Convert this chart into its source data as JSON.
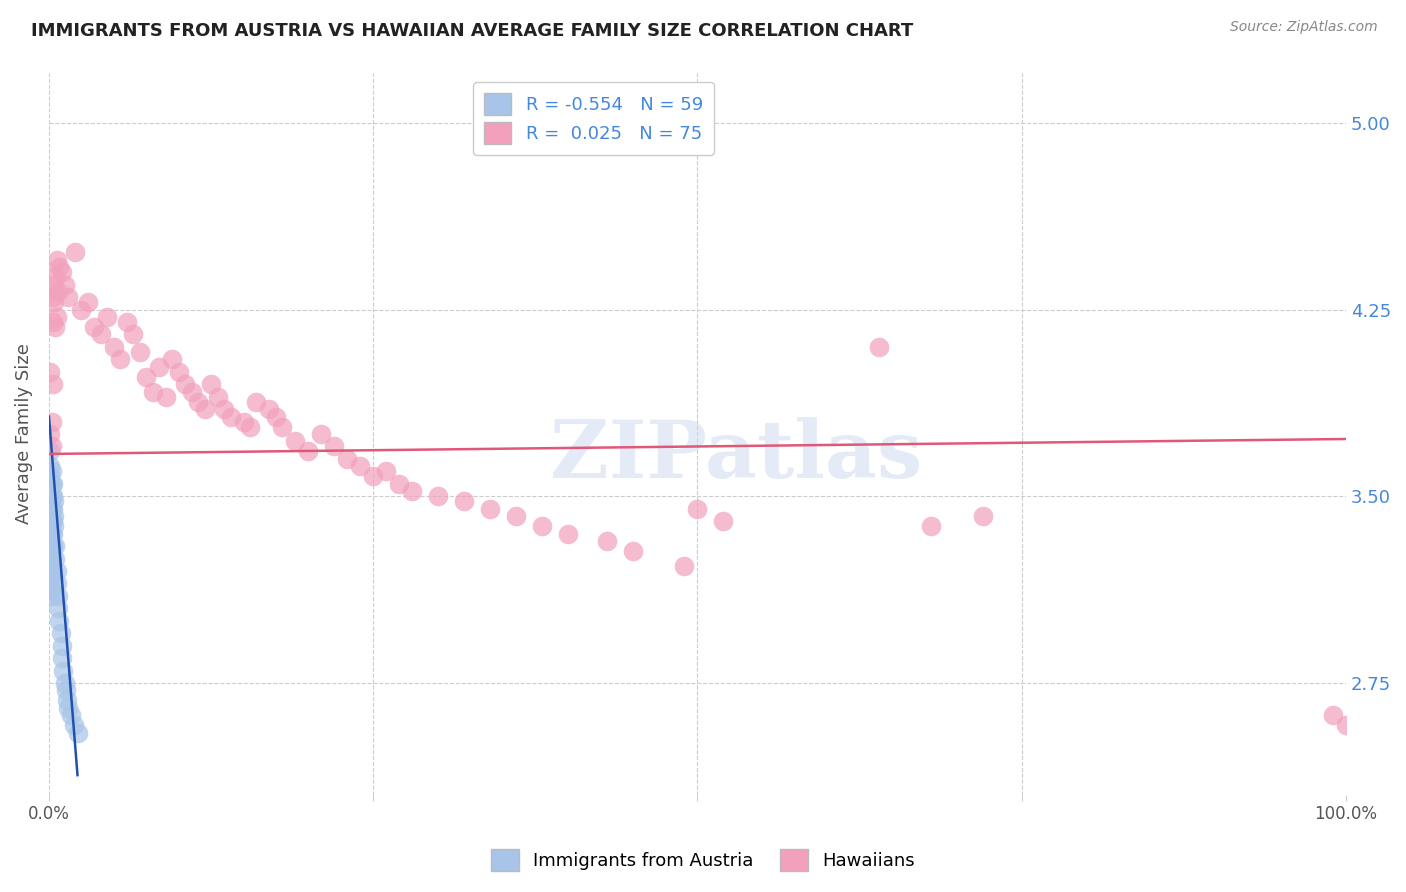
{
  "title": "IMMIGRANTS FROM AUSTRIA VS HAWAIIAN AVERAGE FAMILY SIZE CORRELATION CHART",
  "source": "Source: ZipAtlas.com",
  "ylabel": "Average Family Size",
  "yticks": [
    2.75,
    3.5,
    4.25,
    5.0
  ],
  "xlim": [
    0.0,
    1.0
  ],
  "ylim": [
    2.3,
    5.2
  ],
  "color_blue": "#a8c4e8",
  "color_pink": "#f2a0bc",
  "color_blue_line": "#2050b0",
  "color_pink_line": "#e05878",
  "color_ytick": "#4488dd",
  "color_source": "#888888",
  "watermark": "ZIPatlas",
  "blue_x": [
    0.001,
    0.001,
    0.001,
    0.001,
    0.001,
    0.001,
    0.001,
    0.001,
    0.001,
    0.001,
    0.001,
    0.001,
    0.001,
    0.001,
    0.001,
    0.001,
    0.001,
    0.001,
    0.001,
    0.001,
    0.001,
    0.002,
    0.002,
    0.002,
    0.002,
    0.002,
    0.002,
    0.002,
    0.002,
    0.002,
    0.002,
    0.002,
    0.003,
    0.003,
    0.003,
    0.003,
    0.003,
    0.003,
    0.004,
    0.004,
    0.004,
    0.005,
    0.005,
    0.006,
    0.006,
    0.007,
    0.007,
    0.008,
    0.009,
    0.01,
    0.01,
    0.011,
    0.012,
    0.013,
    0.014,
    0.015,
    0.017,
    0.019,
    0.022
  ],
  "blue_y": [
    3.68,
    3.62,
    3.58,
    3.55,
    3.52,
    3.5,
    3.48,
    3.45,
    3.43,
    3.4,
    3.38,
    3.35,
    3.32,
    3.3,
    3.28,
    3.25,
    3.22,
    3.2,
    3.18,
    3.15,
    3.12,
    3.6,
    3.55,
    3.5,
    3.45,
    3.4,
    3.35,
    3.3,
    3.25,
    3.2,
    3.15,
    3.1,
    3.55,
    3.5,
    3.45,
    3.4,
    3.35,
    3.3,
    3.48,
    3.42,
    3.38,
    3.3,
    3.25,
    3.2,
    3.15,
    3.1,
    3.05,
    3.0,
    2.95,
    2.9,
    2.85,
    2.8,
    2.75,
    2.72,
    2.68,
    2.65,
    2.62,
    2.58,
    2.55
  ],
  "pink_x": [
    0.001,
    0.002,
    0.001,
    0.003,
    0.002,
    0.003,
    0.004,
    0.003,
    0.005,
    0.004,
    0.006,
    0.005,
    0.007,
    0.006,
    0.008,
    0.01,
    0.012,
    0.015,
    0.02,
    0.025,
    0.03,
    0.035,
    0.04,
    0.045,
    0.05,
    0.055,
    0.06,
    0.065,
    0.07,
    0.075,
    0.08,
    0.085,
    0.09,
    0.095,
    0.1,
    0.105,
    0.11,
    0.115,
    0.12,
    0.125,
    0.13,
    0.135,
    0.14,
    0.15,
    0.155,
    0.16,
    0.17,
    0.175,
    0.18,
    0.19,
    0.2,
    0.21,
    0.22,
    0.23,
    0.24,
    0.25,
    0.26,
    0.27,
    0.28,
    0.3,
    0.32,
    0.34,
    0.36,
    0.38,
    0.4,
    0.43,
    0.45,
    0.49,
    0.52,
    0.64,
    0.68,
    0.72,
    0.99,
    1.0,
    0.5
  ],
  "pink_y": [
    3.75,
    3.8,
    4.0,
    3.95,
    3.7,
    4.3,
    4.35,
    4.2,
    4.38,
    4.28,
    4.22,
    4.18,
    4.32,
    4.45,
    4.42,
    4.4,
    4.35,
    4.3,
    4.48,
    4.25,
    4.28,
    4.18,
    4.15,
    4.22,
    4.1,
    4.05,
    4.2,
    4.15,
    4.08,
    3.98,
    3.92,
    4.02,
    3.9,
    4.05,
    4.0,
    3.95,
    3.92,
    3.88,
    3.85,
    3.95,
    3.9,
    3.85,
    3.82,
    3.8,
    3.78,
    3.88,
    3.85,
    3.82,
    3.78,
    3.72,
    3.68,
    3.75,
    3.7,
    3.65,
    3.62,
    3.58,
    3.6,
    3.55,
    3.52,
    3.5,
    3.48,
    3.45,
    3.42,
    3.38,
    3.35,
    3.32,
    3.28,
    3.22,
    3.4,
    4.1,
    3.38,
    3.42,
    2.62,
    2.58,
    3.45
  ],
  "blue_line_x": [
    0.0,
    0.022
  ],
  "blue_line_y": [
    3.82,
    2.38
  ],
  "pink_line_x": [
    0.0,
    1.0
  ],
  "pink_line_y": [
    3.67,
    3.73
  ]
}
